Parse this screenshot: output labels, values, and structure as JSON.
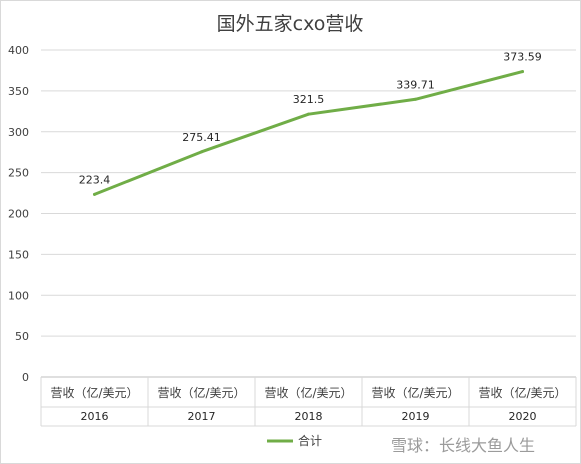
{
  "chart_data": {
    "type": "line",
    "title": "国外五家cxo营收",
    "categories": [
      "2016",
      "2017",
      "2018",
      "2019",
      "2020"
    ],
    "category_sublabels": [
      "营收（亿/美元）",
      "营收（亿/美元）",
      "营收（亿/美元）",
      "营收（亿/美元）",
      "营收（亿/美元）"
    ],
    "series": [
      {
        "name": "合计",
        "values": [
          223.4,
          275.41,
          321.5,
          339.71,
          373.59
        ],
        "color": "#70ad47"
      }
    ],
    "data_labels": [
      "223.4",
      "275.41",
      "321.5",
      "339.71",
      "373.59"
    ],
    "ylim": [
      0,
      400
    ],
    "yticks": [
      "0",
      "50",
      "100",
      "150",
      "200",
      "250",
      "300",
      "350",
      "400"
    ],
    "grid": true,
    "legend_position": "bottom"
  },
  "watermark": "雪球：长线大鱼人生"
}
